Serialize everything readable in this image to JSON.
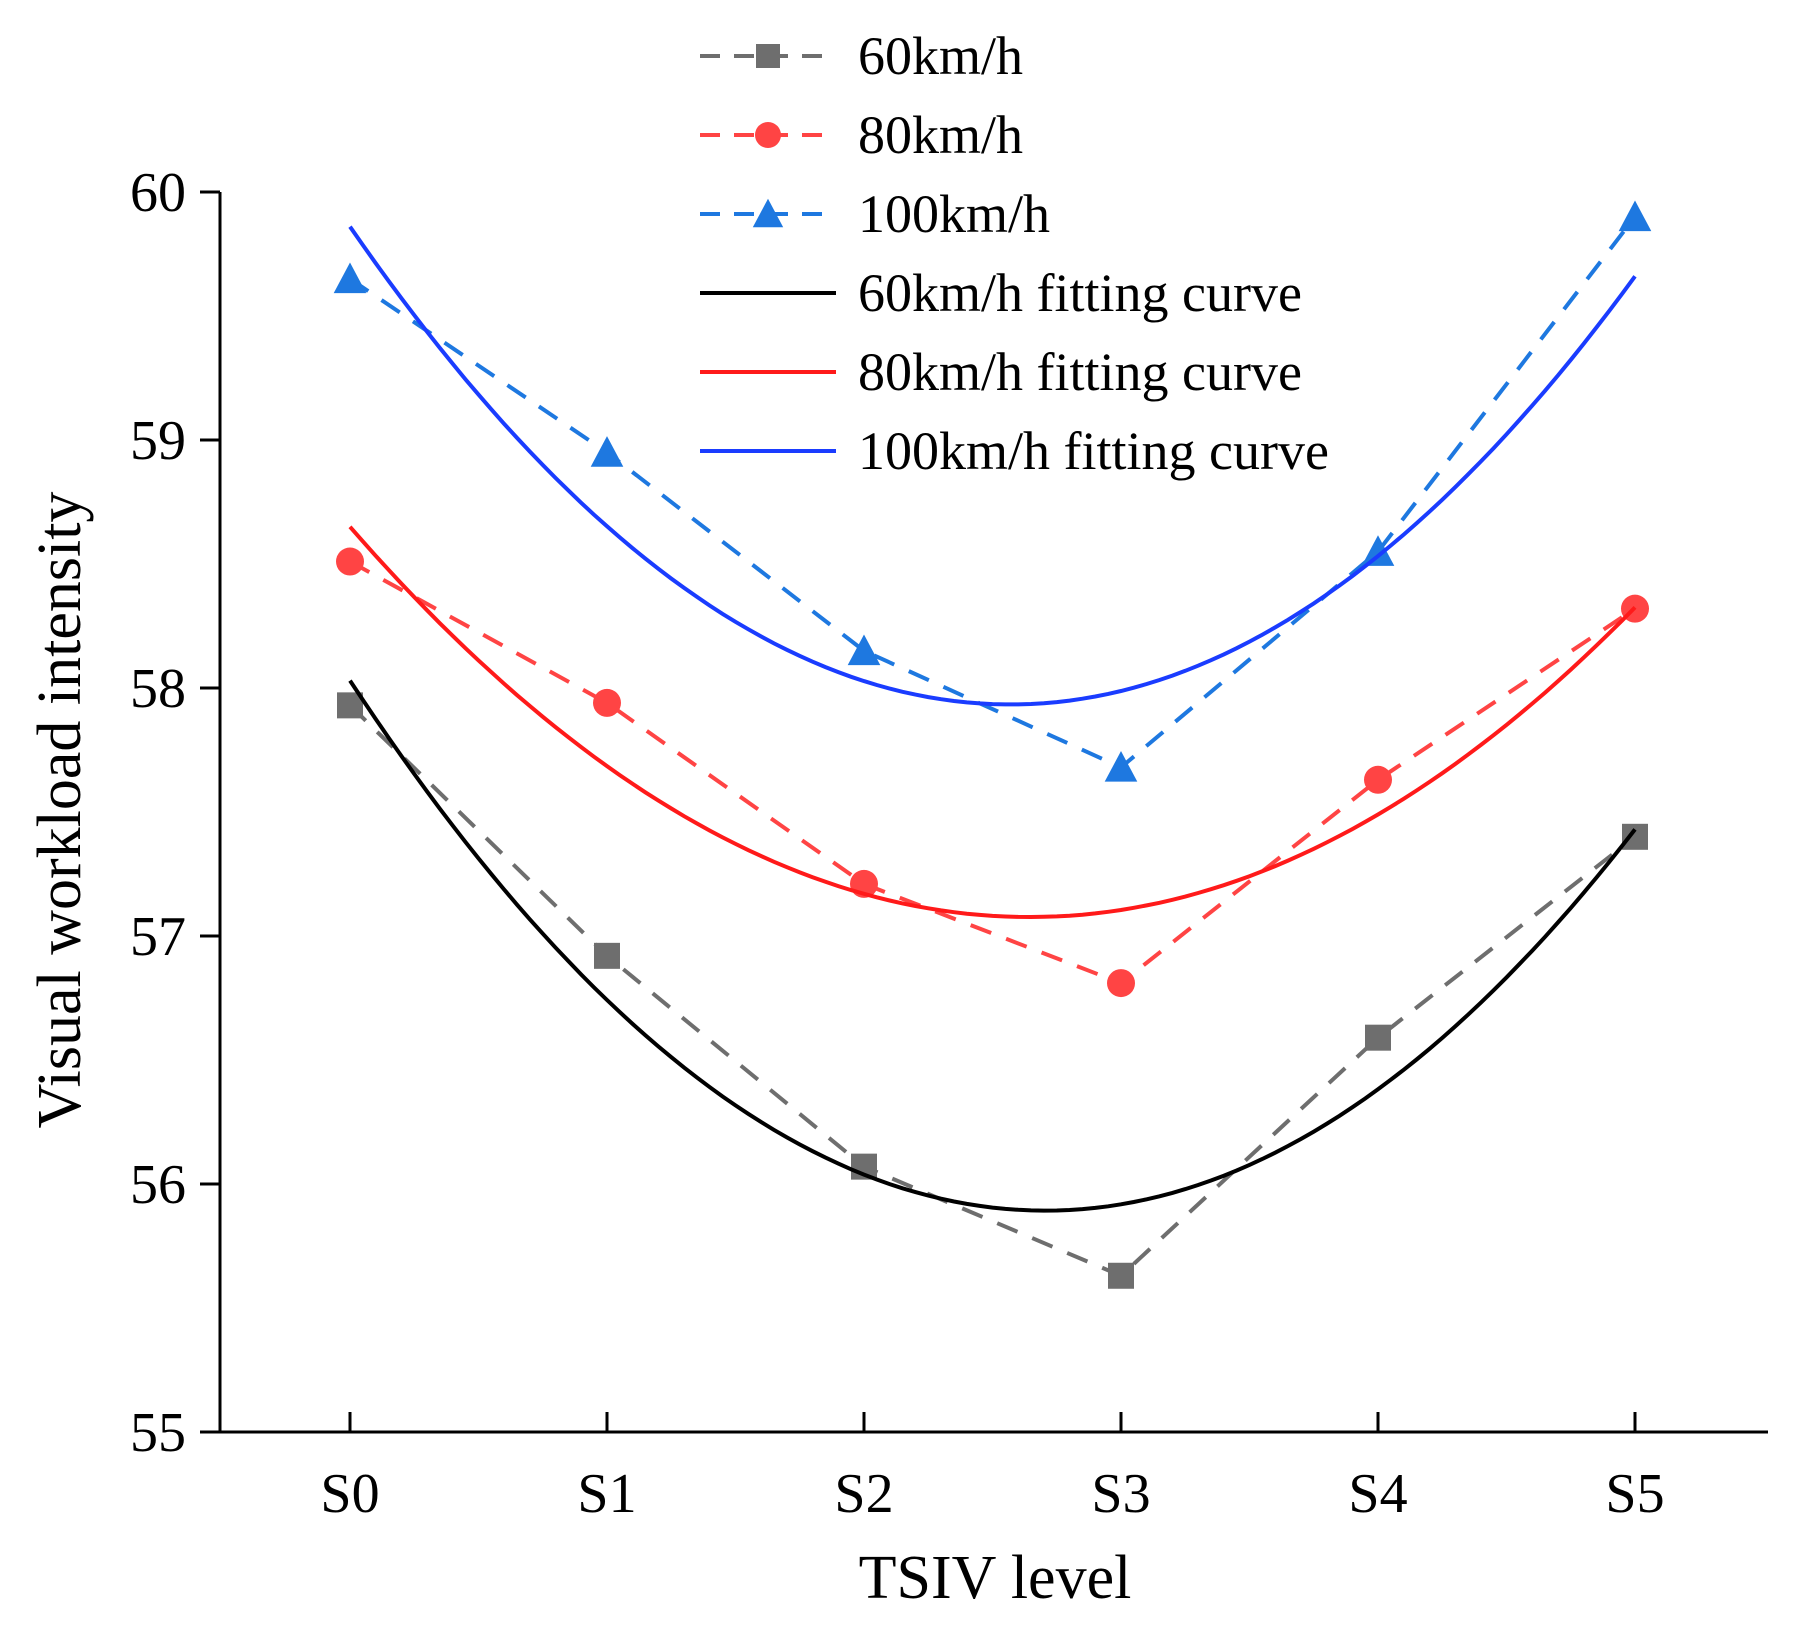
{
  "chart_data": {
    "type": "line",
    "title": "",
    "xlabel": "TSIV level",
    "ylabel": "Visual workload intensity",
    "categories": [
      "S0",
      "S1",
      "S2",
      "S3",
      "S4",
      "S5"
    ],
    "ylim": [
      55,
      60
    ],
    "yticks": [
      55,
      56,
      57,
      58,
      59,
      60
    ],
    "ytick_labels": [
      "55",
      "56",
      "57",
      "58",
      "59",
      "60"
    ],
    "grid": false,
    "legend_position": "top-center",
    "series": [
      {
        "name": "60km/h",
        "style": "dashed",
        "marker": "square",
        "color": "#6e6e6e",
        "values": [
          57.93,
          56.92,
          56.07,
          55.63,
          56.59,
          57.4
        ]
      },
      {
        "name": "80km/h",
        "style": "dashed",
        "marker": "circle",
        "color": "#ff4444",
        "values": [
          58.51,
          57.94,
          57.21,
          56.81,
          57.63,
          58.32
        ]
      },
      {
        "name": "100km/h",
        "style": "dashed",
        "marker": "triangle",
        "color": "#1e78e0",
        "values": [
          59.65,
          58.95,
          58.15,
          57.68,
          58.55,
          59.9
        ]
      }
    ],
    "fitting_curves": [
      {
        "name": "60km/h fitting curve",
        "color": "#000000",
        "coefficients": [
          58.03,
          -1.58,
          0.292
        ]
      },
      {
        "name": "80km/h fitting curve",
        "color": "#ff1a1a",
        "coefficients": [
          58.65,
          -1.19,
          0.225
        ]
      },
      {
        "name": "100km/h fitting curve",
        "color": "#1a3cff",
        "coefficients": [
          59.86,
          -1.5,
          0.292
        ]
      }
    ]
  }
}
